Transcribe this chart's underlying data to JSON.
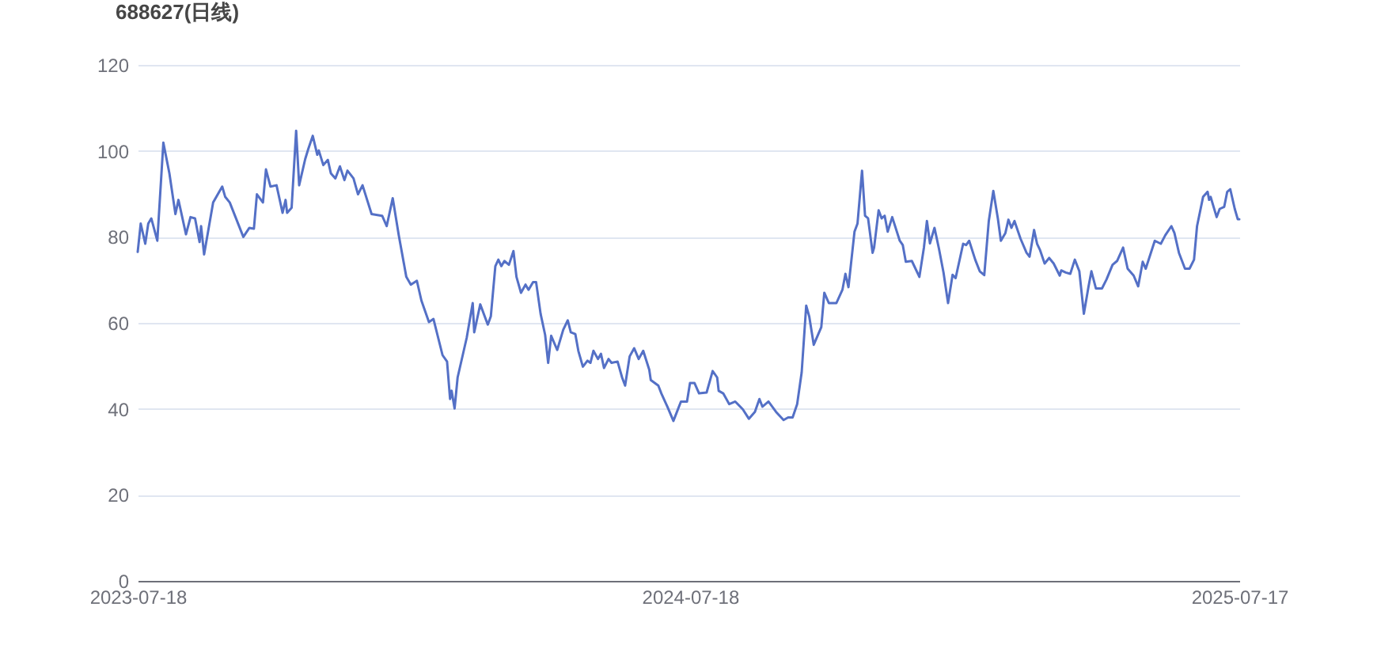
{
  "chart_data": {
    "type": "line",
    "title": "688627(日线)",
    "x": [
      "2023-07-18",
      "2023-07-20",
      "2023-07-23",
      "2023-07-25",
      "2023-07-27",
      "2023-07-31",
      "2023-08-04",
      "2023-08-08",
      "2023-08-12",
      "2023-08-14",
      "2023-08-19",
      "2023-08-22",
      "2023-08-25",
      "2023-08-28",
      "2023-08-29",
      "2023-08-31",
      "2023-09-06",
      "2023-09-12",
      "2023-09-14",
      "2023-09-17",
      "2023-09-26",
      "2023-09-30",
      "2023-10-03",
      "2023-10-05",
      "2023-10-09",
      "2023-10-11",
      "2023-10-14",
      "2023-10-18",
      "2023-10-22",
      "2023-10-24",
      "2023-10-25",
      "2023-10-28",
      "2023-10-31",
      "2023-11-02",
      "2023-11-06",
      "2023-11-08",
      "2023-11-11",
      "2023-11-14",
      "2023-11-15",
      "2023-11-18",
      "2023-11-21",
      "2023-11-23",
      "2023-11-26",
      "2023-11-29",
      "2023-12-02",
      "2023-12-04",
      "2023-12-08",
      "2023-12-11",
      "2023-12-14",
      "2023-12-20",
      "2023-12-27",
      "2023-12-30",
      "2024-01-03",
      "2024-01-07",
      "2024-01-12",
      "2024-01-15",
      "2024-01-19",
      "2024-01-22",
      "2024-01-27",
      "2024-01-30",
      "2024-02-05",
      "2024-02-08",
      "2024-02-10",
      "2024-02-11",
      "2024-02-13",
      "2024-02-15",
      "2024-02-21",
      "2024-02-25",
      "2024-02-26",
      "2024-03-01",
      "2024-03-06",
      "2024-03-08",
      "2024-03-11",
      "2024-03-13",
      "2024-03-15",
      "2024-03-17",
      "2024-03-20",
      "2024-03-23",
      "2024-03-25",
      "2024-03-28",
      "2024-03-31",
      "2024-04-02",
      "2024-04-05",
      "2024-04-07",
      "2024-04-10",
      "2024-04-13",
      "2024-04-15",
      "2024-04-17",
      "2024-04-21",
      "2024-04-25",
      "2024-04-28",
      "2024-04-30",
      "2024-05-03",
      "2024-05-05",
      "2024-05-08",
      "2024-05-11",
      "2024-05-13",
      "2024-05-15",
      "2024-05-18",
      "2024-05-20",
      "2024-05-22",
      "2024-05-25",
      "2024-05-27",
      "2024-05-31",
      "2024-06-03",
      "2024-06-05",
      "2024-06-08",
      "2024-06-11",
      "2024-06-14",
      "2024-06-17",
      "2024-06-21",
      "2024-06-22",
      "2024-06-27",
      "2024-06-29",
      "2024-07-03",
      "2024-07-07",
      "2024-07-12",
      "2024-07-16",
      "2024-07-18",
      "2024-07-21",
      "2024-07-24",
      "2024-07-29",
      "2024-08-02",
      "2024-08-05",
      "2024-08-06",
      "2024-08-09",
      "2024-08-13",
      "2024-08-17",
      "2024-08-22",
      "2024-08-26",
      "2024-08-30",
      "2024-09-02",
      "2024-09-04",
      "2024-09-08",
      "2024-09-13",
      "2024-09-18",
      "2024-09-21",
      "2024-09-24",
      "2024-09-27",
      "2024-09-30",
      "2024-10-03",
      "2024-10-05",
      "2024-10-08",
      "2024-10-13",
      "2024-10-15",
      "2024-10-18",
      "2024-10-23",
      "2024-10-27",
      "2024-10-29",
      "2024-10-31",
      "2024-11-04",
      "2024-11-06",
      "2024-11-09",
      "2024-11-11",
      "2024-11-13",
      "2024-11-16",
      "2024-11-17",
      "2024-11-20",
      "2024-11-22",
      "2024-11-24",
      "2024-11-26",
      "2024-11-29",
      "2024-12-04",
      "2024-12-06",
      "2024-12-08",
      "2024-12-12",
      "2024-12-17",
      "2024-12-20",
      "2024-12-22",
      "2024-12-24",
      "2024-12-27",
      "2024-12-30",
      "2025-01-02",
      "2025-01-05",
      "2025-01-08",
      "2025-01-10",
      "2025-01-15",
      "2025-01-17",
      "2025-01-19",
      "2025-01-23",
      "2025-01-26",
      "2025-01-29",
      "2025-02-01",
      "2025-02-04",
      "2025-02-07",
      "2025-02-09",
      "2025-02-12",
      "2025-02-14",
      "2025-02-16",
      "2025-02-18",
      "2025-02-22",
      "2025-02-26",
      "2025-02-28",
      "2025-03-03",
      "2025-03-05",
      "2025-03-07",
      "2025-03-10",
      "2025-03-13",
      "2025-03-16",
      "2025-03-20",
      "2025-03-21",
      "2025-03-24",
      "2025-03-27",
      "2025-03-30",
      "2025-04-02",
      "2025-04-05",
      "2025-04-08",
      "2025-04-10",
      "2025-04-13",
      "2025-04-17",
      "2025-04-20",
      "2025-04-24",
      "2025-04-27",
      "2025-05-01",
      "2025-05-04",
      "2025-05-08",
      "2025-05-11",
      "2025-05-14",
      "2025-05-16",
      "2025-05-22",
      "2025-05-26",
      "2025-05-29",
      "2025-06-02",
      "2025-06-04",
      "2025-06-07",
      "2025-06-11",
      "2025-06-14",
      "2025-06-17",
      "2025-06-19",
      "2025-06-23",
      "2025-06-26",
      "2025-06-27",
      "2025-06-28",
      "2025-07-02",
      "2025-07-04",
      "2025-07-07",
      "2025-07-09",
      "2025-07-11",
      "2025-07-14",
      "2025-07-16",
      "2025-07-17"
    ],
    "series": [
      {
        "color": "#5470c6",
        "values": [
          76.5,
          83.1,
          78.4,
          83.1,
          84.3,
          79.1,
          101.9,
          94.8,
          85.3,
          88.6,
          80.6,
          84.6,
          84.3,
          78.8,
          82.5,
          75.9,
          88.0,
          91.7,
          89.3,
          88.0,
          80.0,
          82.1,
          81.9,
          89.9,
          88.0,
          95.7,
          91.7,
          92.0,
          85.6,
          88.6,
          85.6,
          86.8,
          104.7,
          92.0,
          98.1,
          100.4,
          103.5,
          99.1,
          100.1,
          96.7,
          97.9,
          94.8,
          93.6,
          96.4,
          93.2,
          95.4,
          93.6,
          89.9,
          92.0,
          85.3,
          84.9,
          82.5,
          89.0,
          80.4,
          70.7,
          68.9,
          69.8,
          65.2,
          60.2,
          60.9,
          52.5,
          51.0,
          42.3,
          44.2,
          40.1,
          47.3,
          56.5,
          64.6,
          57.8,
          64.3,
          59.6,
          61.5,
          73.2,
          74.7,
          73.2,
          74.4,
          73.5,
          76.7,
          70.7,
          67.0,
          68.9,
          67.7,
          69.5,
          69.5,
          62.1,
          57.2,
          50.7,
          57.0,
          53.7,
          58.4,
          60.6,
          57.8,
          57.4,
          53.5,
          49.8,
          51.2,
          50.7,
          53.5,
          51.6,
          52.8,
          49.5,
          51.6,
          50.7,
          51.0,
          47.3,
          45.4,
          52.2,
          54.1,
          51.6,
          53.5,
          49.1,
          46.7,
          45.4,
          43.6,
          40.5,
          37.2,
          41.7,
          41.7,
          46.0,
          46.0,
          43.6,
          43.8,
          48.8,
          47.3,
          44.2,
          43.6,
          41.1,
          41.7,
          39.9,
          37.7,
          39.3,
          42.3,
          40.5,
          41.7,
          39.3,
          37.4,
          38.0,
          38.0,
          41.1,
          48.5,
          64.0,
          61.5,
          54.9,
          59.0,
          67.0,
          64.6,
          64.6,
          67.7,
          71.4,
          68.3,
          81.2,
          83.1,
          95.4,
          84.9,
          84.3,
          76.3,
          77.5,
          86.2,
          84.3,
          84.9,
          81.2,
          84.6,
          79.1,
          78.1,
          74.2,
          74.4,
          70.7,
          77.5,
          83.7,
          78.5,
          82.1,
          77.2,
          71.7,
          64.6,
          71.2,
          70.4,
          78.4,
          78.1,
          79.1,
          74.7,
          72.0,
          71.1,
          83.7,
          90.7,
          84.3,
          79.1,
          80.9,
          84.0,
          82.1,
          83.7,
          79.6,
          76.3,
          75.4,
          81.6,
          78.4,
          76.9,
          73.8,
          75.1,
          73.8,
          71.0,
          72.2,
          71.7,
          71.4,
          74.7,
          72.0,
          62.1,
          68.3,
          72.0,
          68.0,
          68.0,
          70.1,
          73.5,
          74.4,
          77.5,
          72.6,
          71.0,
          68.5,
          74.2,
          72.6,
          79.1,
          78.4,
          80.4,
          82.5,
          80.9,
          76.3,
          72.6,
          72.6,
          74.7,
          82.5,
          89.3,
          90.5,
          88.6,
          89.3,
          84.6,
          86.5,
          87.0,
          90.5,
          91.1,
          86.5,
          84.1,
          84.1
        ]
      }
    ],
    "xlim": [
      "2023-07-18",
      "2025-07-17"
    ],
    "xticks": [
      "2023-07-18",
      "2024-07-18",
      "2025-07-17"
    ],
    "ylim": [
      0,
      120
    ],
    "yticks": [
      0,
      20,
      40,
      60,
      80,
      100,
      120
    ],
    "grid": "y"
  }
}
